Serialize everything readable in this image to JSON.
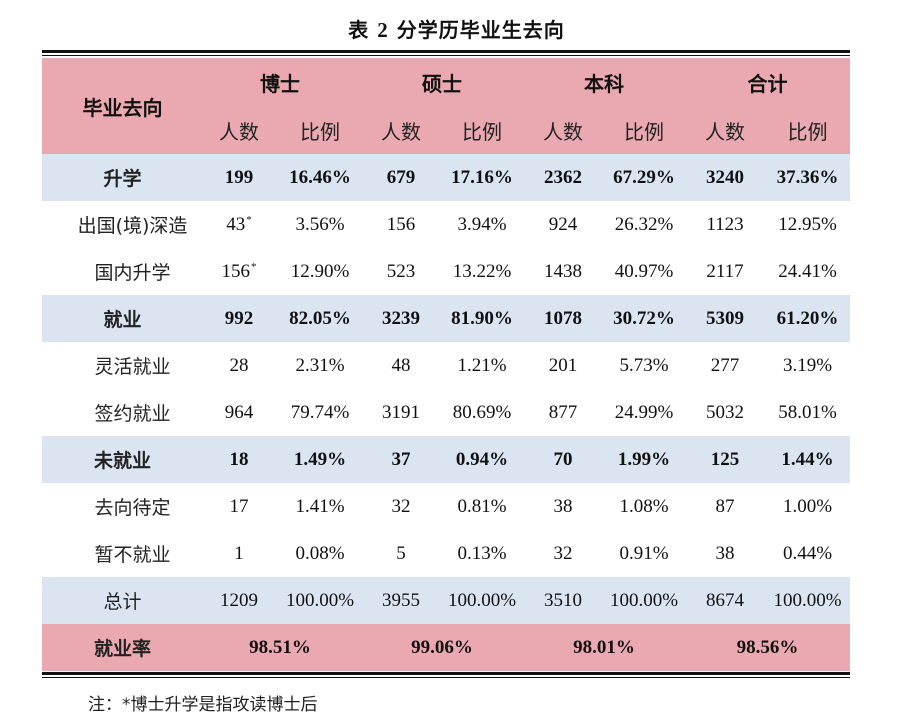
{
  "title_prefix": "表",
  "title_num": "2",
  "title_text": "分学历毕业生去向",
  "header": {
    "corner": "毕业去向",
    "groups": [
      "博士",
      "硕士",
      "本科",
      "合计"
    ],
    "sub_count": "人数",
    "sub_ratio": "比例"
  },
  "rows": [
    {
      "label": "升学",
      "kind": "cat",
      "cells": [
        "199",
        "16.46%",
        "679",
        "17.16%",
        "2362",
        "67.29%",
        "3240",
        "37.36%"
      ]
    },
    {
      "label": "出国(境)深造",
      "kind": "sub",
      "cells": [
        "43",
        "3.56%",
        "156",
        "3.94%",
        "924",
        "26.32%",
        "1123",
        "12.95%"
      ],
      "asterisk": "*"
    },
    {
      "label": "国内升学",
      "kind": "sub",
      "cells": [
        "156",
        "12.90%",
        "523",
        "13.22%",
        "1438",
        "40.97%",
        "2117",
        "24.41%"
      ],
      "asterisk": "*"
    },
    {
      "label": "就业",
      "kind": "cat",
      "cells": [
        "992",
        "82.05%",
        "3239",
        "81.90%",
        "1078",
        "30.72%",
        "5309",
        "61.20%"
      ]
    },
    {
      "label": "灵活就业",
      "kind": "sub",
      "cells": [
        "28",
        "2.31%",
        "48",
        "1.21%",
        "201",
        "5.73%",
        "277",
        "3.19%"
      ]
    },
    {
      "label": "签约就业",
      "kind": "sub",
      "cells": [
        "964",
        "79.74%",
        "3191",
        "80.69%",
        "877",
        "24.99%",
        "5032",
        "58.01%"
      ]
    },
    {
      "label": "未就业",
      "kind": "cat",
      "cells": [
        "18",
        "1.49%",
        "37",
        "0.94%",
        "70",
        "1.99%",
        "125",
        "1.44%"
      ]
    },
    {
      "label": "去向待定",
      "kind": "sub",
      "cells": [
        "17",
        "1.41%",
        "32",
        "0.81%",
        "38",
        "1.08%",
        "87",
        "1.00%"
      ]
    },
    {
      "label": "暂不就业",
      "kind": "sub",
      "cells": [
        "1",
        "0.08%",
        "5",
        "0.13%",
        "32",
        "0.91%",
        "38",
        "0.44%"
      ]
    },
    {
      "label": "总计",
      "kind": "total",
      "cells": [
        "1209",
        "100.00%",
        "3955",
        "100.00%",
        "3510",
        "100.00%",
        "8674",
        "100.00%"
      ]
    }
  ],
  "rate_row": {
    "label": "就业率",
    "values": [
      "98.51%",
      "99.06%",
      "98.01%",
      "98.56%"
    ]
  },
  "note": "注：*博士升学是指攻读博士后",
  "colors": {
    "header_bg": "#eaa9b0",
    "category_bg": "#dbe5f1",
    "rate_bg": "#eaa9b0"
  }
}
